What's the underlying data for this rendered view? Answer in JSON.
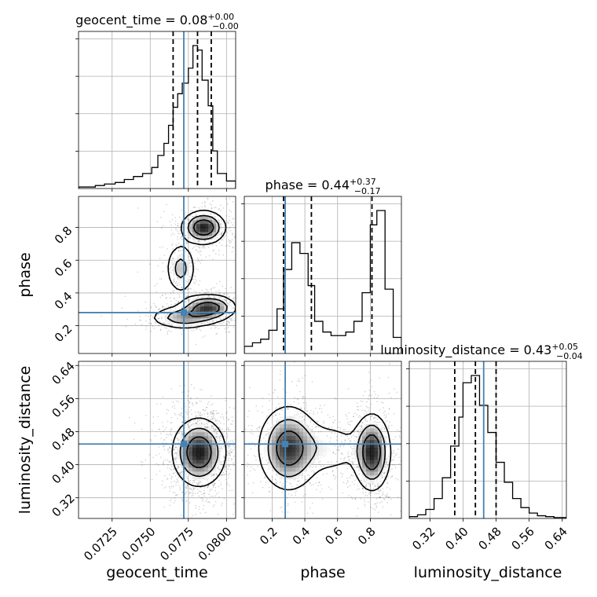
{
  "chart_data": {
    "type": "corner",
    "parameters": [
      "geocent_time",
      "phase",
      "luminosity_distance"
    ],
    "truth": {
      "geocent_time": 0.0772,
      "phase": 0.28,
      "luminosity_distance": 0.45
    },
    "ranges": {
      "geocent_time": [
        0.0703,
        0.0806
      ],
      "phase": [
        0.03,
        0.99
      ],
      "luminosity_distance": [
        0.27,
        0.65
      ]
    },
    "grid": true,
    "histograms": [
      {
        "parameter": "geocent_time",
        "title": "geocent_time = 0.08",
        "title_plus": "+0.00",
        "title_minus": "−0.00",
        "quantiles": [
          0.0765,
          0.0781,
          0.079
        ],
        "bin_edges": [
          0.0703,
          0.0714,
          0.072,
          0.0727,
          0.0733,
          0.0739,
          0.0745,
          0.0751,
          0.0755,
          0.0759,
          0.0762,
          0.0765,
          0.0768,
          0.0771,
          0.0775,
          0.0778,
          0.0781,
          0.0784,
          0.0788,
          0.0791,
          0.0794,
          0.08,
          0.0806
        ],
        "counts": [
          1,
          2,
          3,
          4,
          6,
          8,
          10,
          14,
          22,
          30,
          42,
          54,
          63,
          70,
          80,
          95,
          92,
          72,
          55,
          25,
          10,
          5
        ]
      },
      {
        "parameter": "phase",
        "title": "phase = 0.44",
        "title_plus": "+0.37",
        "title_minus": "−0.17",
        "quantiles": [
          0.27,
          0.44,
          0.81
        ],
        "bin_edges": [
          0.03,
          0.08,
          0.13,
          0.18,
          0.23,
          0.27,
          0.32,
          0.37,
          0.42,
          0.46,
          0.51,
          0.56,
          0.61,
          0.65,
          0.7,
          0.75,
          0.8,
          0.84,
          0.89,
          0.94,
          0.99
        ],
        "counts": [
          4,
          6,
          8,
          13,
          25,
          47,
          62,
          56,
          38,
          18,
          12,
          10,
          10,
          12,
          18,
          34,
          72,
          80,
          36,
          9
        ]
      },
      {
        "parameter": "luminosity_distance",
        "title": "luminosity_distance = 0.43",
        "title_plus": "+0.05",
        "title_minus": "−0.04",
        "quantiles": [
          0.38,
          0.43,
          0.48
        ],
        "bin_edges": [
          0.27,
          0.29,
          0.31,
          0.33,
          0.35,
          0.37,
          0.39,
          0.4,
          0.42,
          0.44,
          0.46,
          0.48,
          0.5,
          0.52,
          0.54,
          0.56,
          0.58,
          0.6,
          0.62,
          0.65
        ],
        "counts": [
          2,
          4,
          10,
          22,
          45,
          80,
          112,
          150,
          158,
          125,
          95,
          62,
          40,
          22,
          12,
          6,
          3,
          2,
          1
        ]
      }
    ],
    "density_panels": [
      {
        "x": "geocent_time",
        "y": "phase",
        "modes": [
          {
            "x": 0.0785,
            "y": 0.8,
            "sx": 0.0007,
            "sy": 0.05,
            "w": 1.0
          },
          {
            "x": 0.0788,
            "y": 0.31,
            "sx": 0.0009,
            "sy": 0.04,
            "w": 0.9
          },
          {
            "x": 0.0772,
            "y": 0.25,
            "sx": 0.0011,
            "sy": 0.035,
            "w": 0.55
          },
          {
            "x": 0.077,
            "y": 0.55,
            "sx": 0.0005,
            "sy": 0.08,
            "w": 0.45
          }
        ]
      },
      {
        "x": "geocent_time",
        "y": "luminosity_distance",
        "modes": [
          {
            "x": 0.0782,
            "y": 0.43,
            "sx": 0.00085,
            "sy": 0.04,
            "w": 1.0
          }
        ]
      },
      {
        "x": "phase",
        "y": "luminosity_distance",
        "modes": [
          {
            "x": 0.3,
            "y": 0.44,
            "sx": 0.09,
            "sy": 0.05,
            "w": 0.9
          },
          {
            "x": 0.81,
            "y": 0.43,
            "sx": 0.055,
            "sy": 0.045,
            "w": 1.0
          },
          {
            "x": 0.55,
            "y": 0.44,
            "sx": 0.12,
            "sy": 0.035,
            "w": 0.25
          }
        ]
      }
    ],
    "ticks": {
      "geocent_time": [
        "0.0725",
        "0.0750",
        "0.0775",
        "0.0800"
      ],
      "phase_x": [
        "0.2",
        "0.4",
        "0.6",
        "0.8"
      ],
      "phase_y": [
        "0.2",
        "0.4",
        "0.6",
        "0.8"
      ],
      "luminosity_distance_x": [
        "0.32",
        "0.40",
        "0.48",
        "0.56",
        "0.64"
      ],
      "luminosity_distance_y": [
        "0.32",
        "0.40",
        "0.48",
        "0.56",
        "0.64"
      ]
    },
    "axis_labels": {
      "x": [
        "geocent_time",
        "phase",
        "luminosity_distance"
      ],
      "y": [
        "phase",
        "luminosity_distance"
      ]
    },
    "colors": {
      "truth": "#4682b4",
      "hist": "#000000",
      "quantile": "#000000",
      "grid": "#b0b0b0"
    }
  }
}
